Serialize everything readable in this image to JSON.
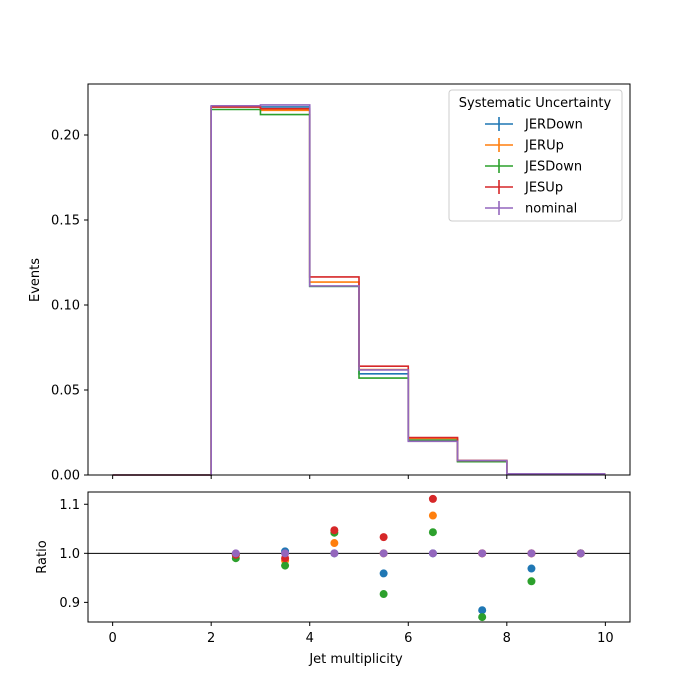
{
  "chart_data": [
    {
      "type": "step",
      "panel": "main",
      "ylabel": "Events",
      "ylim": [
        0,
        0.23
      ],
      "xlim": [
        -0.5,
        10.5
      ],
      "bin_edges": [
        0,
        1,
        2,
        3,
        4,
        5,
        6,
        7,
        8,
        9,
        10
      ],
      "yticks": [
        0.0,
        0.05,
        0.1,
        0.15,
        0.2
      ],
      "ytick_labels": [
        "0.00",
        "0.05",
        "0.10",
        "0.15",
        "0.20"
      ],
      "legend": {
        "title": "Systematic Uncertainty",
        "placement": "top-right"
      },
      "series": [
        {
          "name": "JERDown",
          "color": "#1f77b4",
          "values": [
            0,
            0,
            0.2165,
            0.2165,
            0.111,
            0.0595,
            0.0205,
            0.008,
            0.0007,
            0.0007
          ]
        },
        {
          "name": "JERUp",
          "color": "#ff7f0e",
          "values": [
            0,
            0,
            0.2165,
            0.2145,
            0.1135,
            0.062,
            0.0215,
            0.0085,
            0.0007,
            0.0007
          ]
        },
        {
          "name": "JESDown",
          "color": "#2ca02c",
          "values": [
            0,
            0,
            0.215,
            0.212,
            0.111,
            0.057,
            0.0205,
            0.0078,
            0.0007,
            0.0007
          ]
        },
        {
          "name": "JESUp",
          "color": "#d62728",
          "values": [
            0,
            0,
            0.2165,
            0.2155,
            0.1165,
            0.064,
            0.022,
            0.0085,
            0.0007,
            0.0007
          ]
        },
        {
          "name": "nominal",
          "color": "#9467bd",
          "values": [
            0,
            0,
            0.2172,
            0.2177,
            0.1112,
            0.0618,
            0.0198,
            0.0085,
            0.0007,
            0.0007
          ]
        }
      ]
    },
    {
      "type": "scatter",
      "panel": "ratio",
      "xlabel": "Jet multiplicity",
      "ylabel": "Ratio",
      "ylim": [
        0.86,
        1.125
      ],
      "xlim": [
        -0.5,
        10.5
      ],
      "xticks": [
        0,
        2,
        4,
        6,
        8,
        10
      ],
      "xtick_labels": [
        "0",
        "2",
        "4",
        "6",
        "8",
        "10"
      ],
      "yticks": [
        0.9,
        1.0,
        1.1
      ],
      "ytick_labels": [
        "0.9",
        "1.0",
        "1.1"
      ],
      "reference_line": 1.0,
      "x": [
        2.5,
        3.5,
        4.5,
        5.5,
        6.5,
        7.5,
        8.5,
        9.5
      ],
      "series": [
        {
          "name": "JERDown",
          "color": "#1f77b4",
          "values": [
            0.997,
            1.004,
            1.0,
            0.959,
            1.0,
            0.884,
            0.969,
            1.0
          ]
        },
        {
          "name": "JERUp",
          "color": "#ff7f0e",
          "values": [
            0.997,
            0.985,
            1.021,
            1.0,
            1.077,
            1.0,
            1.0,
            1.0
          ]
        },
        {
          "name": "JESDown",
          "color": "#2ca02c",
          "values": [
            0.99,
            0.975,
            1.042,
            0.917,
            1.043,
            0.87,
            0.943,
            1.0
          ]
        },
        {
          "name": "JESUp",
          "color": "#d62728",
          "values": [
            0.997,
            0.99,
            1.047,
            1.033,
            1.111,
            1.0,
            1.0,
            1.0
          ]
        },
        {
          "name": "nominal",
          "color": "#9467bd",
          "values": [
            1.0,
            1.0,
            1.0,
            1.0,
            1.0,
            1.0,
            1.0,
            1.0
          ]
        }
      ]
    }
  ]
}
